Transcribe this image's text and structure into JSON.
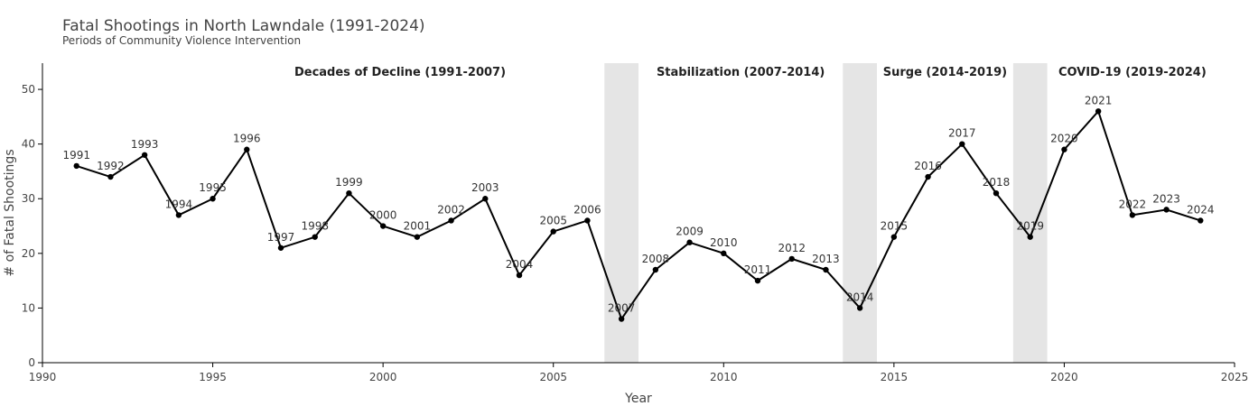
{
  "chart_data": {
    "type": "line",
    "title": "Fatal Shootings in North Lawndale (1991-2024)",
    "subtitle": "Periods of Community Violence Intervention",
    "xlabel": "Year",
    "ylabel": "# of Fatal Shootings",
    "xlim": [
      1990,
      2025
    ],
    "ylim": [
      0,
      54.8
    ],
    "xticks": [
      1990,
      1995,
      2000,
      2005,
      2010,
      2015,
      2020,
      2025
    ],
    "yticks": [
      0,
      10,
      20,
      30,
      40,
      50
    ],
    "grid": false,
    "x": [
      1991,
      1992,
      1993,
      1994,
      1995,
      1996,
      1997,
      1998,
      1999,
      2000,
      2001,
      2002,
      2003,
      2004,
      2005,
      2006,
      2007,
      2008,
      2009,
      2010,
      2011,
      2012,
      2013,
      2014,
      2015,
      2016,
      2017,
      2018,
      2019,
      2020,
      2021,
      2022,
      2023,
      2024
    ],
    "y": [
      36,
      34,
      38,
      27,
      30,
      39,
      21,
      23,
      31,
      25,
      23,
      26,
      30,
      16,
      24,
      26,
      8,
      17,
      22,
      20,
      15,
      19,
      17,
      10,
      23,
      34,
      40,
      31,
      23,
      39,
      46,
      27,
      28,
      26
    ],
    "point_labels": [
      "1991",
      "1992",
      "1993",
      "1994",
      "1995",
      "1996",
      "1997",
      "1998",
      "1999",
      "2000",
      "2001",
      "2002",
      "2003",
      "2004",
      "2005",
      "2006",
      "2007",
      "2008",
      "2009",
      "2010",
      "2011",
      "2012",
      "2013",
      "2014",
      "2015",
      "2016",
      "2017",
      "2018",
      "2019",
      "2020",
      "2021",
      "2022",
      "2023",
      "2024"
    ],
    "shaded_bands": [
      [
        2006.5,
        2007.5
      ],
      [
        2013.5,
        2014.5
      ],
      [
        2018.5,
        2019.5
      ]
    ],
    "period_labels": [
      {
        "text": "Decades of Decline (1991-2007)",
        "x": 2000.5
      },
      {
        "text": "Stabilization (2007-2014)",
        "x": 2010.5
      },
      {
        "text": "Surge (2014-2019)",
        "x": 2016.5
      },
      {
        "text": "COVID-19 (2019-2024)",
        "x": 2022
      }
    ],
    "line_color": "#000000",
    "band_color": "#e5e5e5"
  }
}
